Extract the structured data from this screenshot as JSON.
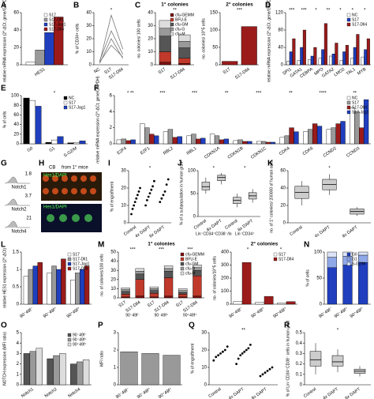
{
  "chart_data": [
    {
      "panel": "A",
      "type": "bar",
      "ylabel": "relative mRNA expression (2^-ΔCt, gene/GAPDH)",
      "categories": [
        "HES1"
      ],
      "ylim": [
        0,
        60
      ],
      "yticks": [
        0,
        20,
        40,
        60
      ],
      "series": [
        {
          "name": "S17",
          "color": "#ffffff",
          "values": [
            3
          ]
        },
        {
          "name": "S17-Dll1",
          "color": "#999999",
          "values": [
            17
          ]
        },
        {
          "name": "S17-Jag1",
          "color": "#1f3fbf",
          "values": [
            37
          ]
        },
        {
          "name": "S17-Dll4",
          "color": "#9b1b1b",
          "values": [
            55
          ]
        }
      ]
    },
    {
      "panel": "B",
      "type": "line",
      "ylabel": "% of CD34+ cells",
      "categories": [
        "NC",
        "S17",
        "S17-Dll4"
      ],
      "ylim": [
        0,
        40
      ],
      "yticks": [
        0,
        10,
        20,
        30,
        40
      ],
      "annotations": [
        "*"
      ],
      "series": [
        {
          "color": "#777777",
          "values": [
            2,
            38,
            12
          ]
        },
        {
          "color": "#777777",
          "values": [
            3,
            26,
            8
          ]
        },
        {
          "color": "#777777",
          "values": [
            1,
            20,
            5
          ]
        },
        {
          "color": "#777777",
          "values": [
            2,
            15,
            6
          ]
        }
      ]
    },
    {
      "panel": "C",
      "type": "bar",
      "stacked": true,
      "title": "1° colonies",
      "ylabel": "no. colonies/ 100 cells",
      "categories": [
        "S17",
        "S17-Dll4"
      ],
      "ylim": [
        0,
        40
      ],
      "yticks": [
        0,
        10,
        20,
        30,
        40
      ],
      "annotations": [
        "**"
      ],
      "series": [
        {
          "name": "cfu-GEMM",
          "color": "#7a1010",
          "values": [
            2,
            1
          ]
        },
        {
          "name": "BFU-E",
          "color": "#c0392b",
          "values": [
            8,
            4
          ]
        },
        {
          "name": "cfu-GM",
          "color": "#555555",
          "values": [
            12,
            8
          ]
        },
        {
          "name": "cfu-G",
          "color": "#999999",
          "values": [
            6,
            5
          ]
        },
        {
          "name": "cfu-M",
          "color": "#dddddd",
          "values": [
            6,
            5
          ]
        }
      ]
    },
    {
      "type": "bar",
      "title": "2° colonies",
      "ylabel": "no. colonies/ 10^5 cells",
      "categories": [
        "S17",
        "S17-Dll4"
      ],
      "ylim": [
        0,
        150
      ],
      "yticks": [
        0,
        50,
        100,
        150
      ],
      "annotations": [
        "***"
      ],
      "series": [
        {
          "color": "#9b1b1b",
          "values": [
            10,
            110
          ]
        }
      ]
    },
    {
      "panel": "D",
      "type": "bar",
      "ylabel": "relative mRNA expression (2^-ΔCt, gene/GAPDH)",
      "categories": [
        "SPI1",
        "GATA1",
        "CEBPA",
        "MPO",
        "GATA2",
        "LMO2",
        "TAL1",
        "MYB"
      ],
      "ylim": [
        0,
        120
      ],
      "yticks": [
        0,
        40,
        80,
        120
      ],
      "annotations": [
        "***",
        "***",
        "*",
        "**",
        "*",
        "*",
        "*"
      ],
      "series": [
        {
          "name": "NC",
          "color": "#ffffff",
          "values": [
            8,
            10,
            12,
            15,
            20,
            10,
            15,
            18
          ]
        },
        {
          "name": "S17",
          "color": "#1f3fbf",
          "values": [
            30,
            40,
            20,
            35,
            25,
            30,
            40,
            35
          ]
        },
        {
          "name": "S17-Dll4",
          "color": "#9b1b1b",
          "values": [
            60,
            80,
            40,
            95,
            50,
            45,
            70,
            60
          ]
        }
      ]
    },
    {
      "panel": "E",
      "type": "bar",
      "ylabel": "% of cells",
      "categories": [
        "G0",
        "G1",
        "S-G2/M"
      ],
      "ylim": [
        0,
        100
      ],
      "yticks": [
        0,
        20,
        40,
        60,
        80,
        100
      ],
      "annotations": [
        "*"
      ],
      "series": [
        {
          "name": "NC",
          "color": "#000000",
          "values": [
            95,
            3,
            2
          ]
        },
        {
          "name": "S17",
          "color": "#ffffff",
          "values": [
            90,
            8,
            3
          ]
        },
        {
          "name": "S17-Jag1",
          "color": "#1f3fbf",
          "values": [
            78,
            15,
            6
          ]
        }
      ]
    },
    {
      "panel": "F",
      "type": "bar",
      "ylabel": "relative mRNA expression (2^-ΔCt, gene/GAPDH)",
      "categories": [
        "E2F4",
        "E2F1",
        "RBL2",
        "RBL1",
        "CDKN1A",
        "CDKN1B",
        "CDKN1C",
        "CDK4",
        "CDK6",
        "CCND2",
        "CCND3"
      ],
      "ylim": [
        0,
        6
      ],
      "yticks": [
        0,
        2,
        4,
        6
      ],
      "annotations": [
        "* **",
        "***",
        "***",
        "**",
        "***",
        "**",
        "****",
        "**"
      ],
      "series": [
        {
          "name": "NC",
          "color": "#ffffff",
          "values": [
            0.5,
            2.5,
            1.5,
            1.0,
            1.2,
            0.4,
            0.3,
            0.8,
            1.5,
            1.8,
            4.5
          ]
        },
        {
          "name": "S17",
          "color": "#999999",
          "values": [
            0.6,
            2.0,
            1.8,
            1.2,
            1.0,
            0.5,
            0.3,
            1.0,
            1.8,
            2.0,
            4.0
          ]
        },
        {
          "name": "S17-Dll4",
          "color": "#9b1b1b",
          "values": [
            0.4,
            1.2,
            0.8,
            0.6,
            0.5,
            0.3,
            0.2,
            2.0,
            2.5,
            2.5,
            2.0
          ]
        },
        {
          "name": "S17-Jag1",
          "color": "#1f3fbf",
          "values": [
            0.5,
            1.0,
            0.9,
            0.7,
            0.6,
            0.3,
            0.2,
            1.5,
            2.2,
            2.8,
            5.5
          ]
        }
      ]
    },
    {
      "panel": "G",
      "type": "histogram_image",
      "labels": [
        "Notch1",
        "1.8",
        "Notch2",
        "3.7",
        "Notch4",
        "21"
      ]
    },
    {
      "panel": "H",
      "type": "micrograph",
      "labels": [
        "CB",
        "from 1° mice",
        "Hes1/DAPI",
        "Hes1/DAPI"
      ]
    },
    {
      "panel": "I",
      "type": "dots",
      "ylabel": "% of engraftment",
      "categories": [
        "Control",
        "4x DAPT",
        "8x DAPT"
      ],
      "ylim": [
        0,
        30
      ],
      "yticks": [
        0,
        10,
        20,
        30
      ],
      "annotations": [
        "*"
      ],
      "color": "#000000",
      "values": [
        [
          5,
          8,
          10,
          12,
          14,
          16,
          18,
          20
        ],
        [
          10,
          13,
          15,
          17,
          19,
          21,
          24
        ],
        [
          12,
          14,
          16,
          18,
          22,
          25
        ]
      ]
    },
    {
      "panel": "J",
      "type": "box",
      "ylabel": "% of a subpopulation in human graft",
      "categories": [
        "Control",
        "8x DAPT",
        "Control",
        "8x DAPT"
      ],
      "xgroups": [
        "Lin⁻CD34⁺CD38⁻/lo",
        "Lin⁻CD34⁺"
      ],
      "ylim": [
        0,
        100
      ],
      "yticks": [
        0,
        50,
        100
      ],
      "annotations": [
        "*",
        "*"
      ],
      "color": "#cccccc",
      "boxes": [
        {
          "min": 50,
          "q1": 58,
          "median": 65,
          "q3": 75,
          "max": 85
        },
        {
          "min": 70,
          "q1": 78,
          "median": 85,
          "q3": 90,
          "max": 95
        },
        {
          "min": 20,
          "q1": 28,
          "median": 35,
          "q3": 42,
          "max": 50
        },
        {
          "min": 30,
          "q1": 38,
          "median": 45,
          "q3": 52,
          "max": 60
        }
      ]
    },
    {
      "panel": "K",
      "type": "box",
      "ylabel": "no. of 1° colonies/ 200000 of human cells",
      "categories": [
        "Control",
        "4x DAPT",
        "8x DAPT"
      ],
      "ylim": [
        0,
        60
      ],
      "yticks": [
        0,
        20,
        40,
        60
      ],
      "annotations": [
        "*"
      ],
      "color": "#cccccc",
      "boxes": [
        {
          "min": 20,
          "q1": 28,
          "median": 35,
          "q3": 42,
          "max": 48
        },
        {
          "min": 32,
          "q1": 38,
          "median": 44,
          "q3": 50,
          "max": 56
        },
        {
          "min": 8,
          "q1": 10,
          "median": 13,
          "q3": 16,
          "max": 18
        }
      ]
    },
    {
      "panel": "L",
      "type": "bar",
      "ylabel": "relative HES1 expression (2^-ΔCt)",
      "categories": [
        "90⁻49f⁻",
        "90⁻49f⁺",
        "90⁺49f⁺"
      ],
      "ylim": [
        0,
        1.5
      ],
      "yticks": [
        0,
        0.5,
        1,
        1.5
      ],
      "series": [
        {
          "name": "S17",
          "color": "#ffffff",
          "values": [
            0.8,
            0.9,
            0.7
          ]
        },
        {
          "name": "S17-Dll1",
          "color": "#999999",
          "values": [
            1.0,
            1.1,
            0.9
          ]
        },
        {
          "name": "S17-Jag1",
          "color": "#1f3fbf",
          "values": [
            1.1,
            1.0,
            1.0
          ]
        },
        {
          "name": "S17-Dll4",
          "color": "#9b1b1b",
          "values": [
            1.2,
            1.3,
            1.1
          ]
        }
      ]
    },
    {
      "panel": "M",
      "type": "bar",
      "stacked": true,
      "title": "1° colonies",
      "ylabel": "no. of colonies/100 cells",
      "categories": [
        "S17",
        "S17-Dll4",
        "S17",
        "S17-Dll4",
        "S17",
        "S17-Dll4"
      ],
      "xgroups": [
        "90⁻49f⁻",
        "90⁻49f⁺",
        "90⁺49f⁺"
      ],
      "ylim": [
        0,
        50
      ],
      "yticks": [
        0,
        10,
        20,
        30,
        40,
        50
      ],
      "annotations": [
        "***",
        "***",
        "***"
      ],
      "series": [
        {
          "name": "cfu-GEMM",
          "color": "#7a1010",
          "values": [
            1,
            2,
            1,
            2,
            1,
            2
          ]
        },
        {
          "name": "BFU-E",
          "color": "#c0392b",
          "values": [
            3,
            18,
            4,
            20,
            3,
            22
          ]
        },
        {
          "name": "cfu-GM",
          "color": "#555555",
          "values": [
            3,
            6,
            3,
            7,
            2,
            6
          ]
        },
        {
          "name": "cfu-G",
          "color": "#999999",
          "values": [
            2,
            3,
            2,
            3,
            2,
            3
          ]
        },
        {
          "name": "cfu-M",
          "color": "#dddddd",
          "values": [
            2,
            3,
            2,
            3,
            2,
            3
          ]
        }
      ]
    },
    {
      "type": "bar",
      "title": "2° colonies",
      "ylabel": "no. of colonies/10^5 cells",
      "categories": [
        "90⁻49f⁻",
        "90⁻49f⁺",
        "90⁺49f⁺"
      ],
      "ylim": [
        0,
        400
      ],
      "yticks": [
        0,
        100,
        200,
        300,
        400
      ],
      "annotations": [
        "*",
        "*"
      ],
      "series": [
        {
          "name": "S17",
          "color": "#ffffff",
          "values": [
            20,
            15,
            10
          ]
        },
        {
          "name": "S17-Dll4",
          "color": "#9b1b1b",
          "values": [
            320,
            60,
            20
          ]
        }
      ]
    },
    {
      "panel": "N",
      "type": "bar",
      "stacked": true,
      "ylabel": "% of cells",
      "categories": [
        "90⁻49f⁻",
        "90⁻49f⁺",
        "90⁺49f⁺"
      ],
      "ylim": [
        0,
        100
      ],
      "yticks": [
        0,
        50,
        100
      ],
      "series": [
        {
          "name": "G0",
          "color": "#1f3fbf",
          "values": [
            70,
            75,
            80
          ]
        },
        {
          "name": "G1",
          "color": "#8fa8e8",
          "values": [
            20,
            17,
            14
          ]
        },
        {
          "name": "S-G2/M",
          "color": "#dde4f7",
          "values": [
            10,
            8,
            6
          ]
        }
      ]
    },
    {
      "panel": "O",
      "type": "bar",
      "ylabel": "NOTCH expression (MFI ratio)",
      "categories": [
        "Notch1",
        "Notch2",
        "Notch4"
      ],
      "ylim": [
        0,
        5
      ],
      "yticks": [
        0,
        1,
        2,
        3,
        4,
        5
      ],
      "series": [
        {
          "name": "90⁻49f⁻",
          "color": "#555555",
          "values": [
            3.0,
            2.5,
            2.0
          ]
        },
        {
          "name": "90⁻49f⁺",
          "color": "#999999",
          "values": [
            3.2,
            2.8,
            2.2
          ]
        },
        {
          "name": "90⁺49f⁺",
          "color": "#dddddd",
          "values": [
            3.5,
            3.0,
            2.4
          ]
        }
      ]
    },
    {
      "panel": "P",
      "type": "bar",
      "ylabel": "MFI ratio",
      "categories": [
        "90⁻49f⁻",
        "90⁻49f⁺",
        "90⁺49f⁺"
      ],
      "ylim": [
        0,
        3
      ],
      "yticks": [
        0,
        1,
        2,
        3
      ],
      "series": [
        {
          "color": "#999999",
          "values": [
            1.9,
            1.8,
            1.7
          ]
        }
      ]
    },
    {
      "panel": "Q",
      "type": "dots",
      "ylabel": "% of engraftment",
      "categories": [
        "Control",
        "4x DAPT",
        "8x DAPT"
      ],
      "ylim": [
        0,
        30
      ],
      "yticks": [
        0,
        10,
        20,
        30
      ],
      "annotations": [
        "**"
      ],
      "color": "#000000",
      "values": [
        [
          14,
          16,
          17,
          18,
          19,
          20,
          22
        ],
        [
          12,
          15,
          17,
          18,
          19,
          20,
          21,
          23
        ],
        [
          5,
          6,
          7,
          8,
          9,
          10
        ]
      ]
    },
    {
      "panel": "R",
      "type": "box",
      "ylabel": "% of Lin⁻CD34⁺CD38⁻ cells in human graft",
      "categories": [
        "Control",
        "4x DAPT",
        "8x DAPT"
      ],
      "ylim": [
        0,
        0.5
      ],
      "yticks": [
        0,
        0.1,
        0.2,
        0.3,
        0.4,
        0.5
      ],
      "annotations": [
        "*"
      ],
      "color": "#cccccc",
      "boxes": [
        {
          "min": 0.1,
          "q1": 0.18,
          "median": 0.24,
          "q3": 0.32,
          "max": 0.4
        },
        {
          "min": 0.12,
          "q1": 0.18,
          "median": 0.22,
          "q3": 0.28,
          "max": 0.34
        },
        {
          "min": 0.08,
          "q1": 0.11,
          "median": 0.13,
          "q3": 0.15,
          "max": 0.18
        }
      ]
    }
  ]
}
